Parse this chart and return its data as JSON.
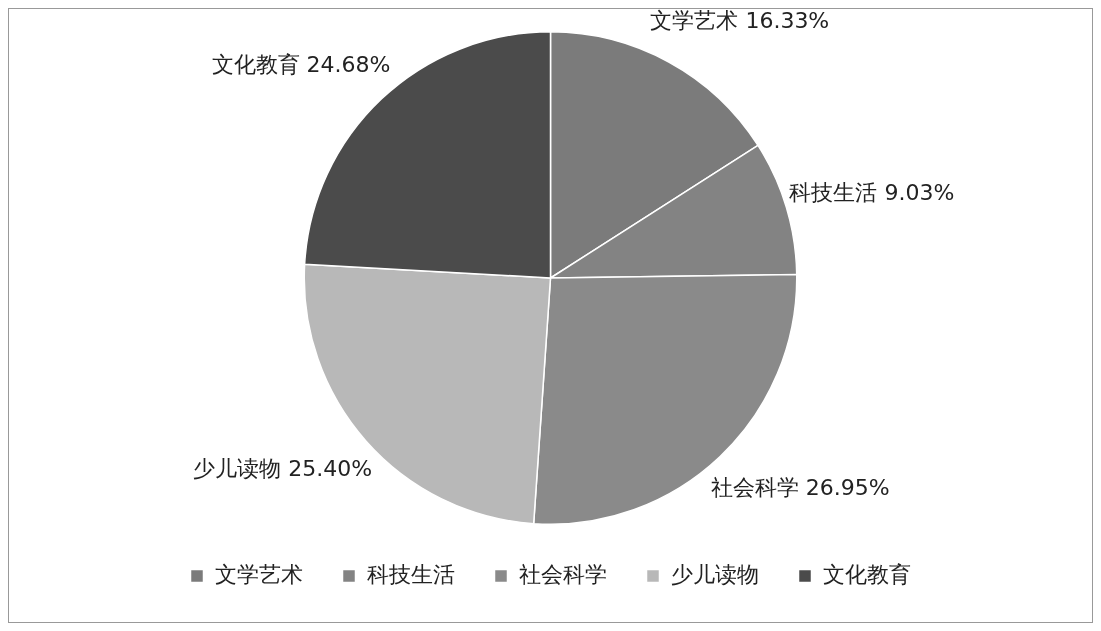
{
  "chart_data": {
    "type": "pie",
    "categories": [
      "文学艺术",
      "科技生活",
      "社会科学",
      "少儿读物",
      "文化教育"
    ],
    "values": [
      16.33,
      9.03,
      26.95,
      25.4,
      24.68
    ],
    "value_labels": [
      "16.33%",
      "9.03%",
      "26.95%",
      "25.40%",
      "24.68%"
    ],
    "colors": [
      "#7b7b7b",
      "#838383",
      "#8a8a8a",
      "#b8b8b8",
      "#4b4b4b"
    ],
    "legend": "bottom"
  }
}
